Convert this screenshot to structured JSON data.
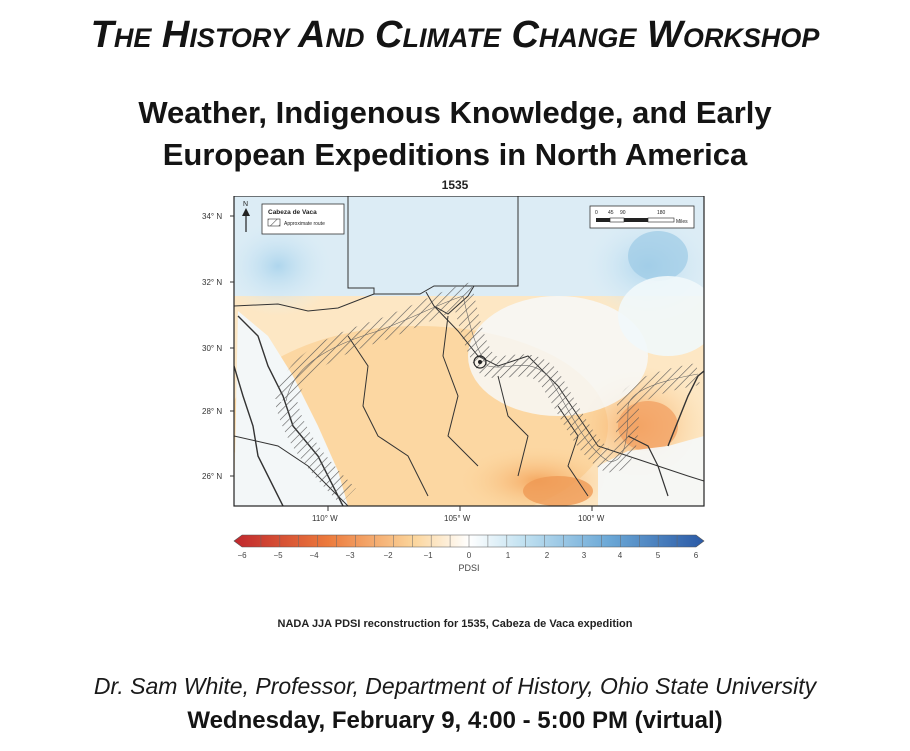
{
  "header": {
    "title": "The History And Climate Change Workshop",
    "subtitle_line1": "Weather, Indigenous Knowledge, and Early",
    "subtitle_line2": "European Expeditions in North America"
  },
  "map": {
    "year_label": "1535",
    "legend_title": "Cabeza de Vaca",
    "legend_item": "Approximate route",
    "scale_ticks": [
      "0",
      "45",
      "90",
      "180"
    ],
    "scale_unit": "Miles",
    "lat_labels": [
      "34° N",
      "32° N",
      "30° N",
      "28° N",
      "26° N"
    ],
    "lon_labels": [
      "110° W",
      "105° W",
      "100° W"
    ],
    "colorbar_ticks": [
      "−6",
      "−5",
      "−4",
      "−3",
      "−2",
      "−1",
      "0",
      "1",
      "2",
      "3",
      "4",
      "5",
      "6"
    ],
    "colorbar_label": "PDSI",
    "colors": {
      "dry": "#c0272d",
      "mid": "#ffffff",
      "wet": "#2b5aa6"
    }
  },
  "caption": "NADA JJA PDSI reconstruction for 1535, Cabeza de Vaca expedition",
  "speaker": "Dr. Sam White, Professor, Department of History, Ohio State University",
  "datetime": "Wednesday, February 9, 4:00 - 5:00 PM (virtual)"
}
